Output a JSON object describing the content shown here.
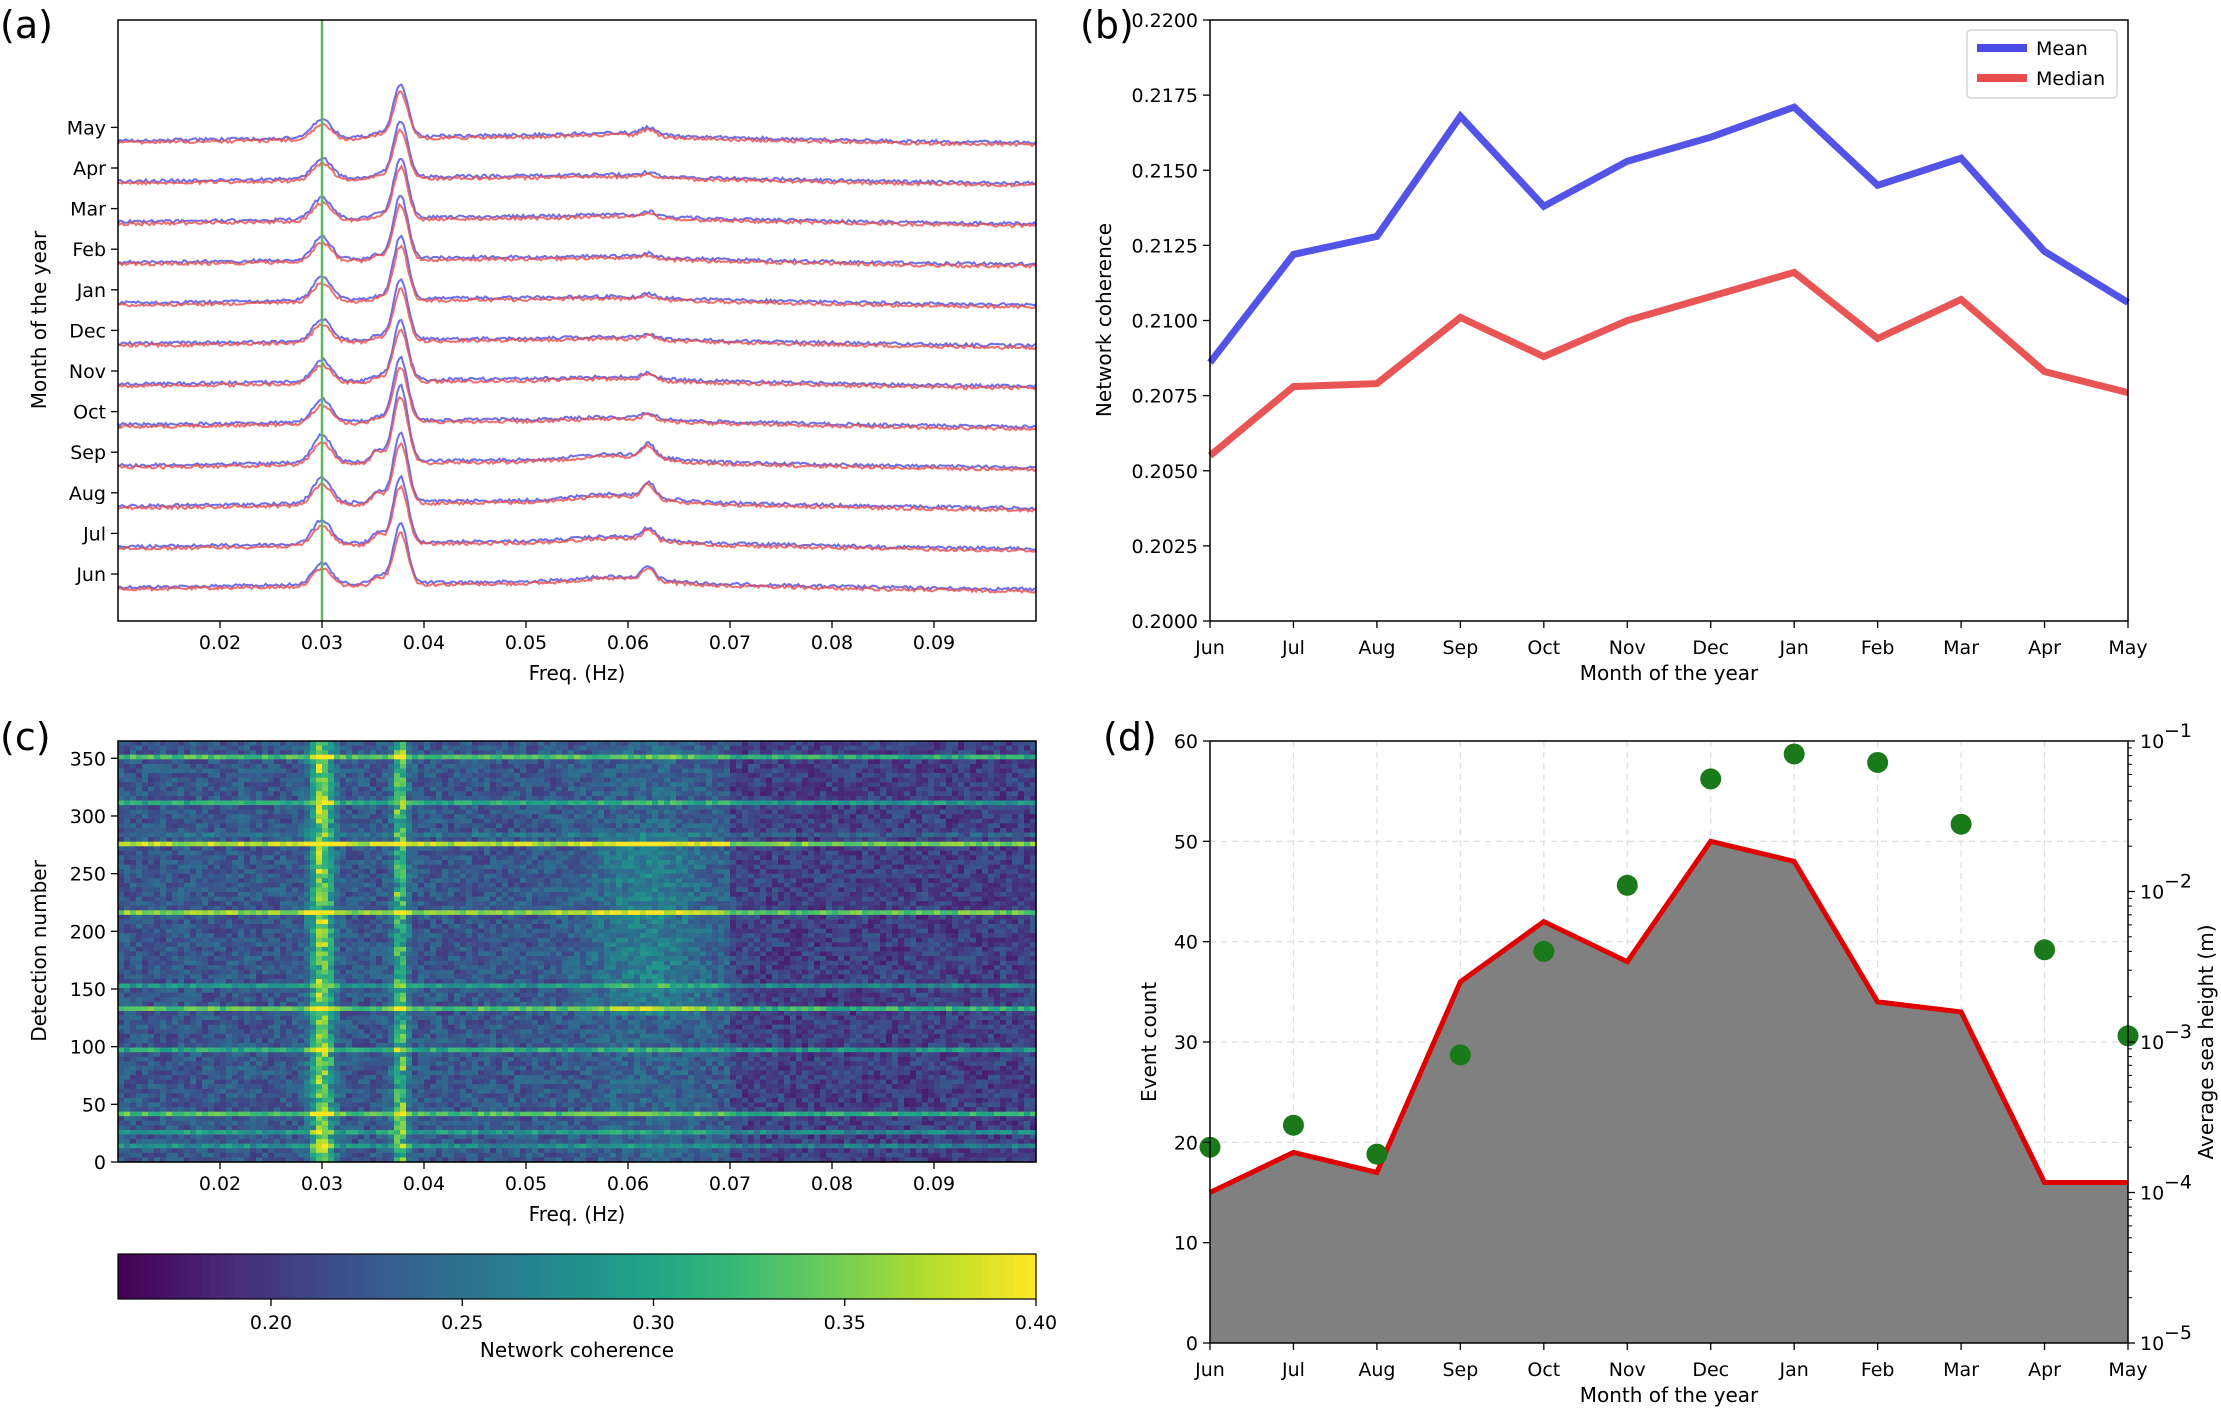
{
  "panels": {
    "a": {
      "label": "(a)",
      "xlabel": "Freq. (Hz)",
      "ylabel": "Month of the year",
      "xticks": [
        "0.02",
        "0.03",
        "0.04",
        "0.05",
        "0.06",
        "0.07",
        "0.08",
        "0.09"
      ],
      "months": [
        "Jun",
        "Jul",
        "Aug",
        "Sep",
        "Oct",
        "Nov",
        "Dec",
        "Jan",
        "Feb",
        "Mar",
        "Apr",
        "May"
      ],
      "marker_freq": 0.03,
      "marker_color": "#5fb85f",
      "mean_color": "#4a4ae6",
      "median_color": "#e84c4c"
    },
    "b": {
      "label": "(b)",
      "xlabel": "Month of the year",
      "ylabel": "Network coherence",
      "yticks": [
        "0.2000",
        "0.2025",
        "0.2050",
        "0.2075",
        "0.2100",
        "0.2125",
        "0.2150",
        "0.2175",
        "0.2200"
      ],
      "legend": [
        "Mean",
        "Median"
      ]
    },
    "c": {
      "label": "(c)",
      "xlabel": "Freq. (Hz)",
      "ylabel": "Detection number",
      "xticks": [
        "0.02",
        "0.03",
        "0.04",
        "0.05",
        "0.06",
        "0.07",
        "0.08",
        "0.09"
      ],
      "yticks": [
        "0",
        "50",
        "100",
        "150",
        "200",
        "250",
        "300",
        "350"
      ],
      "colorbar_label": "Network coherence",
      "colorbar_ticks": [
        "0.20",
        "0.25",
        "0.30",
        "0.35",
        "0.40"
      ]
    },
    "d": {
      "label": "(d)",
      "xlabel": "Month of the year",
      "ylabel_left": "Event count",
      "ylabel_right": "Average sea height (m)",
      "yticks_left": [
        "0",
        "10",
        "20",
        "30",
        "40",
        "50",
        "60"
      ],
      "yticks_right": [
        "10",
        "10",
        "10",
        "10",
        "10"
      ],
      "yticks_right_exp": [
        "−5",
        "−4",
        "−3",
        "−2",
        "−1"
      ],
      "left_color": "#e00000",
      "right_color": "#1a7a1a",
      "fill_color": "#808080"
    }
  },
  "chart_data": [
    {
      "type": "line",
      "panel": "a",
      "title": "",
      "xlabel": "Freq. (Hz)",
      "ylabel": "Month of the year",
      "xlim": [
        0.01,
        0.1
      ],
      "categories": [
        "Jun",
        "Jul",
        "Aug",
        "Sep",
        "Oct",
        "Nov",
        "Dec",
        "Jan",
        "Feb",
        "Mar",
        "Apr",
        "May"
      ],
      "peaks_hz": [
        0.03,
        0.0355,
        0.0377,
        0.062
      ],
      "series": [
        {
          "name": "Mean",
          "color": "#4a4ae6"
        },
        {
          "name": "Median",
          "color": "#e84c4c"
        }
      ],
      "grid": false
    },
    {
      "type": "line",
      "panel": "b",
      "title": "",
      "xlabel": "Month of the year",
      "ylabel": "Network coherence",
      "categories": [
        "Jun",
        "Jul",
        "Aug",
        "Sep",
        "Oct",
        "Nov",
        "Dec",
        "Jan",
        "Feb",
        "Mar",
        "Apr",
        "May"
      ],
      "ylim": [
        0.2,
        0.22
      ],
      "series": [
        {
          "name": "Mean",
          "color": "#4a4ae6",
          "values": [
            0.2086,
            0.2122,
            0.2128,
            0.2168,
            0.2138,
            0.2153,
            0.2161,
            0.2171,
            0.2145,
            0.2154,
            0.2123,
            0.2106
          ]
        },
        {
          "name": "Median",
          "color": "#e84c4c",
          "values": [
            0.2055,
            0.2078,
            0.2079,
            0.2101,
            0.2088,
            0.21,
            0.2108,
            0.2116,
            0.2094,
            0.2107,
            0.2083,
            0.2076
          ]
        }
      ],
      "legend": "top-right",
      "grid": false
    },
    {
      "type": "heatmap",
      "panel": "c",
      "title": "",
      "xlabel": "Freq. (Hz)",
      "ylabel": "Detection number",
      "xlim": [
        0.01,
        0.1
      ],
      "ylim": [
        0,
        365
      ],
      "colorbar": {
        "label": "Network coherence",
        "range": [
          0.16,
          0.4
        ],
        "colormap": "viridis"
      },
      "bright_bands_hz": [
        0.03,
        0.0377
      ]
    },
    {
      "type": "area",
      "panel": "d",
      "title": "",
      "xlabel": "Month of the year",
      "categories": [
        "Jun",
        "Jul",
        "Aug",
        "Sep",
        "Oct",
        "Nov",
        "Dec",
        "Jan",
        "Feb",
        "Mar",
        "Apr",
        "May"
      ],
      "series": [
        {
          "name": "Event count",
          "axis": "left",
          "kind": "area",
          "color": "#e00000",
          "values": [
            15,
            19,
            17,
            36,
            42,
            38,
            50,
            48,
            34,
            33,
            16,
            16
          ]
        },
        {
          "name": "Average sea height (m)",
          "axis": "right",
          "kind": "scatter",
          "color": "#1a7a1a",
          "values": [
            0.0002,
            0.00028,
            0.00018,
            0.00082,
            0.004,
            0.011,
            0.056,
            0.082,
            0.072,
            0.028,
            0.0041,
            0.0011
          ]
        }
      ],
      "ylim_left": [
        0,
        60
      ],
      "ylim_right": [
        1e-05,
        0.1
      ],
      "right_scale": "log",
      "grid": true
    }
  ]
}
